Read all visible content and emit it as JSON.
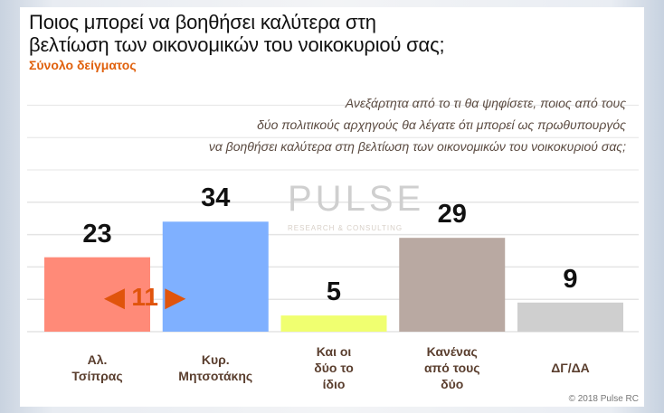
{
  "title_line1": "Ποιος μπορεί να βοηθήσει καλύτερα στη",
  "title_line2": "βελτίωση των οικονομικών του νοικοκυριού σας;",
  "subtitle": "Σύνολο δείγματος",
  "question": [
    "Ανεξάρτητα από το τι θα ψηφίσετε, ποιος από τους",
    "δύο πολιτικούς αρχηγούς θα λέγατε ότι μπορεί ως πρωθυπουργός",
    "να βοηθήσει καλύτερα στη βελτίωση των οικονομικών του νοικοκυριού σας;"
  ],
  "watermark": "PULSE RESEARCH & CONSULTING",
  "copyright": "© 2018 Pulse RC",
  "difference": {
    "value": "11",
    "label": "◀ 11 ▶",
    "color": "#e0540c"
  },
  "chart_data": {
    "type": "bar",
    "categories": [
      [
        "Αλ.",
        "Τσίπρας"
      ],
      [
        "Κυρ.",
        "Μητσοτάκης"
      ],
      [
        "Και οι",
        "δύο το",
        "ίδιο"
      ],
      [
        "Κανένας",
        "από τους",
        "δύο"
      ],
      [
        "ΔΓ/ΔΑ"
      ]
    ],
    "values": [
      23,
      34,
      5,
      29,
      9
    ],
    "value_labels": [
      "23",
      "34",
      "5",
      "29",
      "9"
    ],
    "colors": [
      "#ff8a78",
      "#7fb0ff",
      "#f0ff70",
      "#b9a9a2",
      "#cfcfcf"
    ],
    "ylim": [
      0,
      40
    ],
    "grid": true
  }
}
